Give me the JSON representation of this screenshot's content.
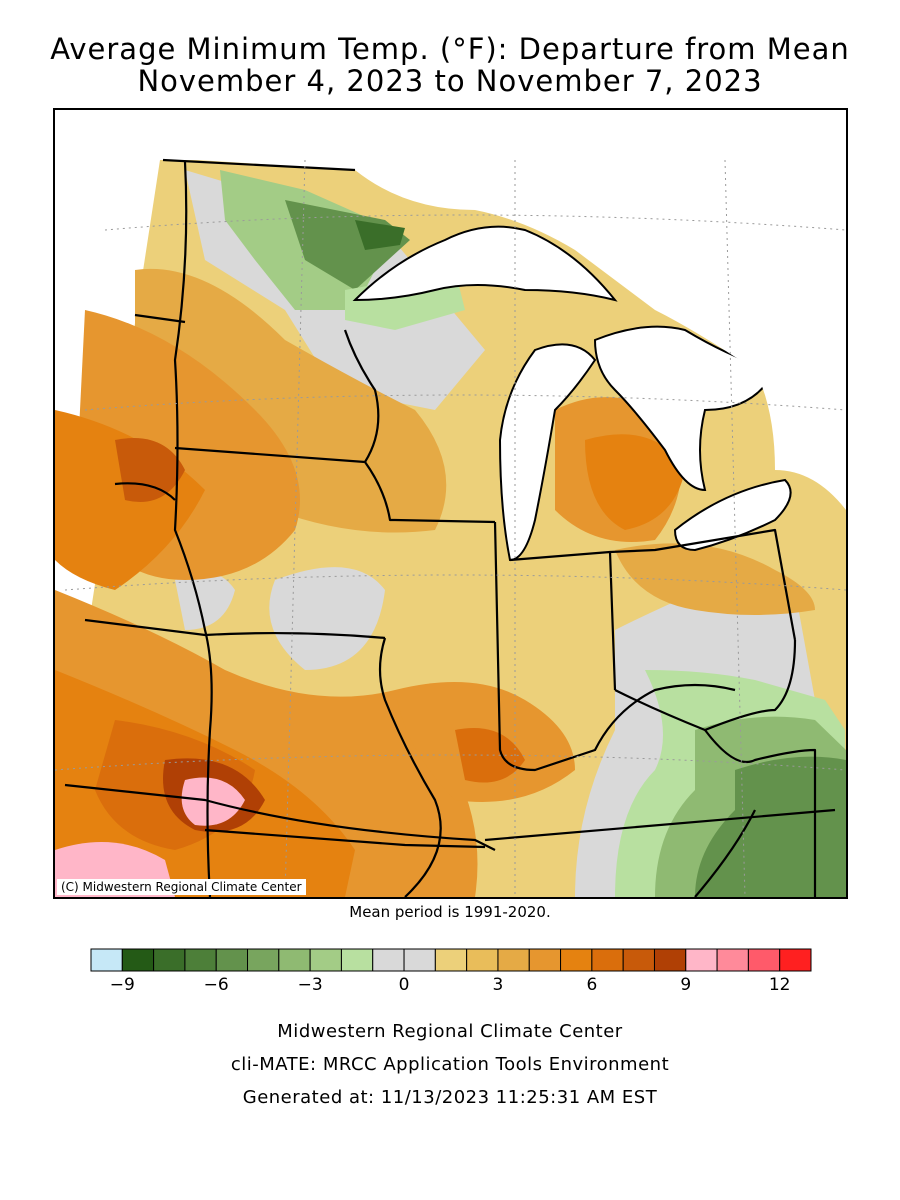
{
  "title_line1": "Average Minimum Temp. (°F): Departure from Mean",
  "title_line2": "November 4, 2023 to November 7, 2023",
  "map": {
    "credit": "(C) Midwestern Regional Climate Center",
    "region": "Upper Midwest / Great Lakes",
    "lake_color": "#ffffff"
  },
  "mean_period": "Mean period is 1991-2020.",
  "legend": {
    "colors": [
      "#c6e8f7",
      "#245a16",
      "#3a6e29",
      "#4d7f39",
      "#63924c",
      "#78a55e",
      "#8fba72",
      "#a3cc86",
      "#b8e0a0",
      "#d9d9d9",
      "#d9d9d9",
      "#ecd07a",
      "#e9bd5a",
      "#e5aa45",
      "#e6962f",
      "#e58210",
      "#da6e0c",
      "#c85a0a",
      "#b04005",
      "#ffb6c8",
      "#ff8a9a",
      "#ff5a6a",
      "#ff2020"
    ],
    "ticks": [
      {
        "value": -9,
        "label": "-9"
      },
      {
        "value": -6,
        "label": "-6"
      },
      {
        "value": -3,
        "label": "-3"
      },
      {
        "value": 0,
        "label": "0"
      },
      {
        "value": 3,
        "label": "3"
      },
      {
        "value": 6,
        "label": "6"
      },
      {
        "value": 9,
        "label": "9"
      },
      {
        "value": 12,
        "label": "12"
      }
    ],
    "min": -10,
    "max": 13
  },
  "footer": {
    "line1": "Midwestern Regional Climate Center",
    "line2": "cli-MATE: MRCC Application Tools Environment",
    "line3": "Generated at: 11/13/2023 11:25:31 AM EST"
  }
}
